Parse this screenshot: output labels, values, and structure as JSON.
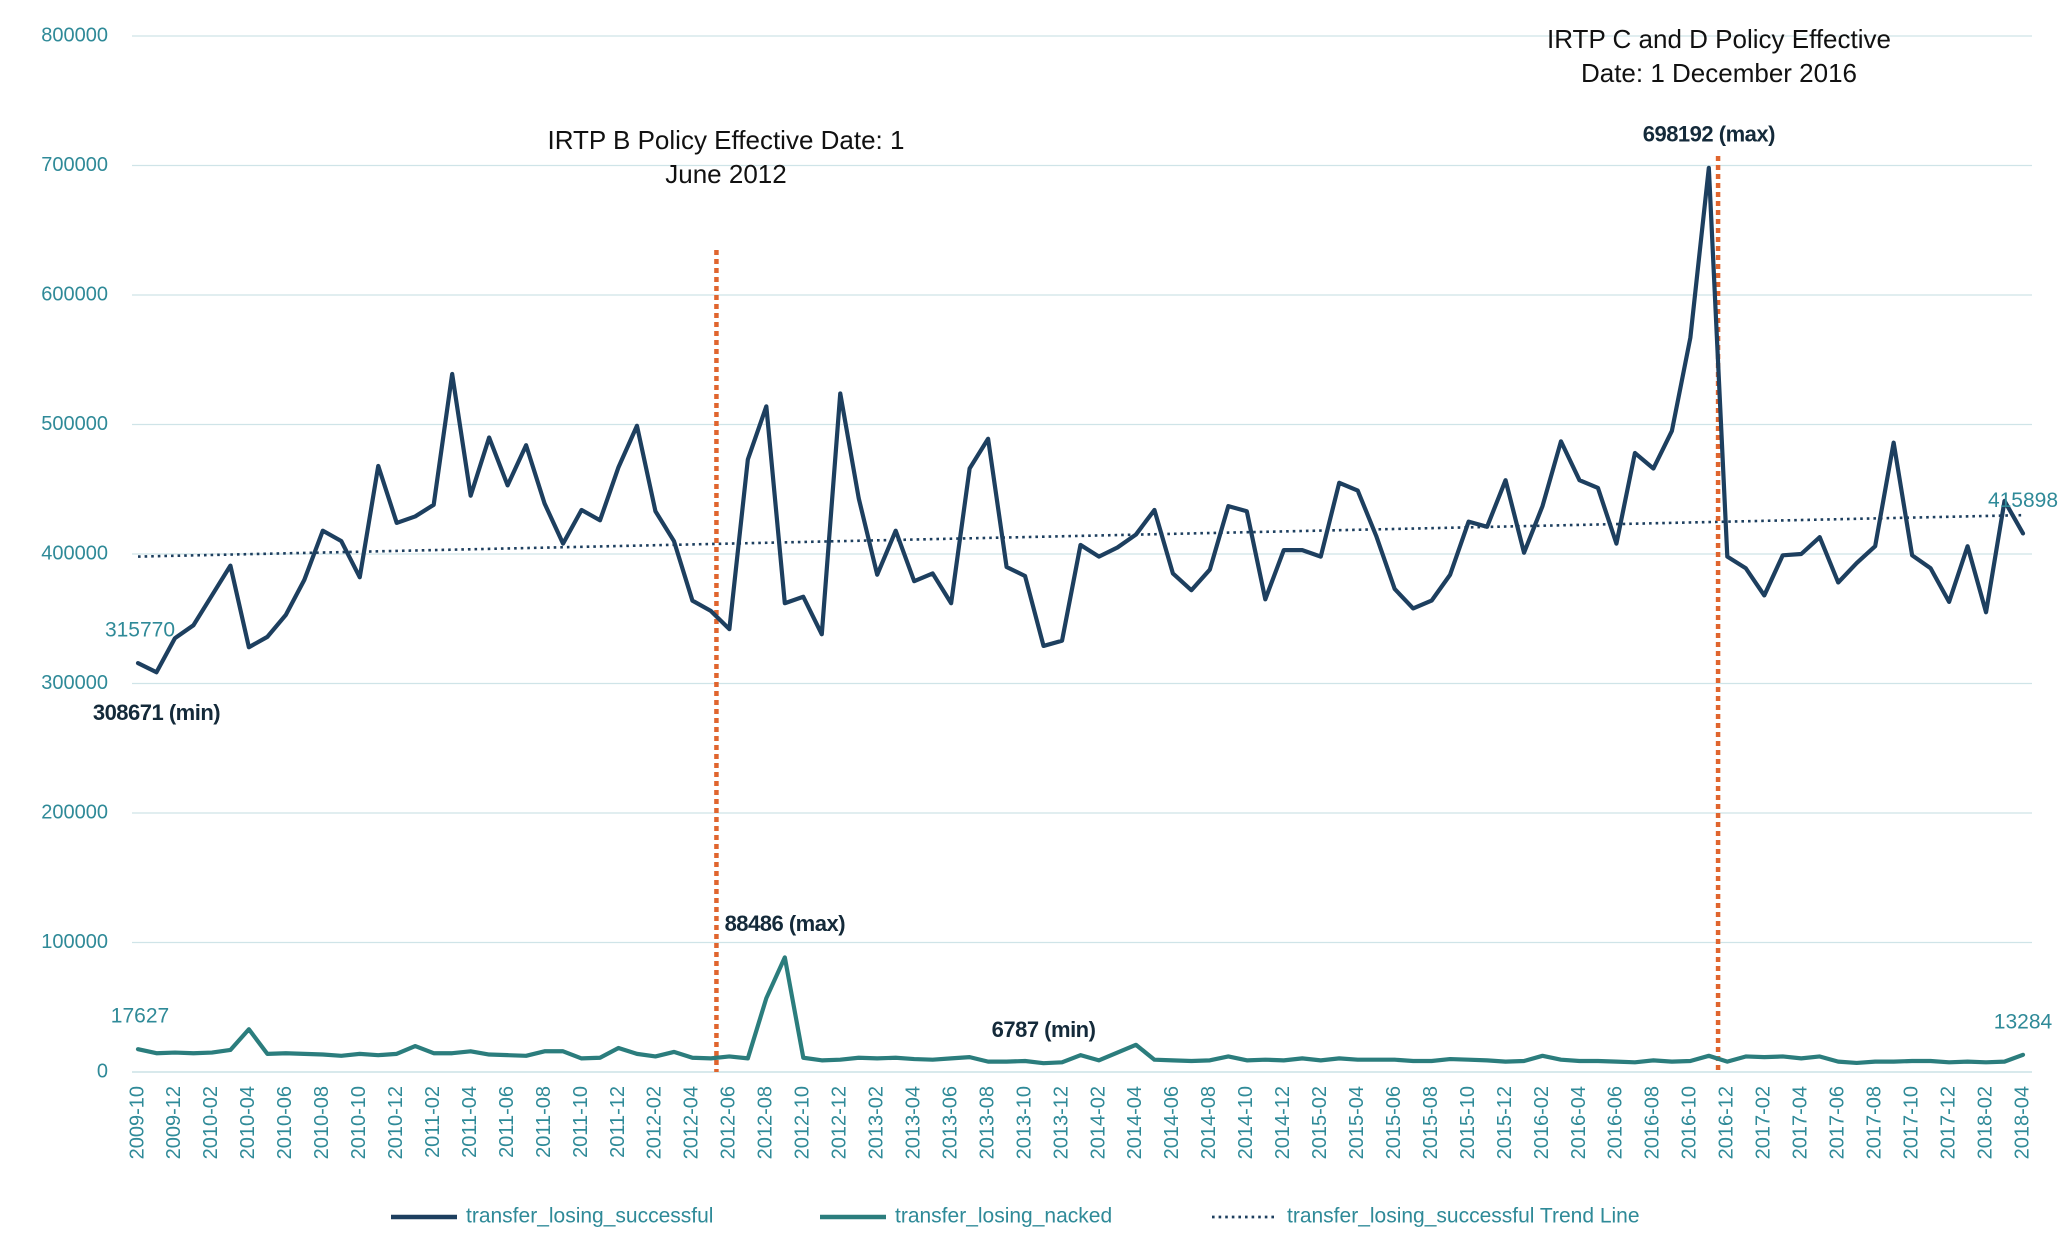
{
  "chart_data": {
    "type": "line",
    "categories": [
      "2009-10",
      null,
      "2009-12",
      null,
      "2010-02",
      null,
      "2010-04",
      null,
      "2010-06",
      null,
      "2010-08",
      null,
      "2010-10",
      null,
      "2010-12",
      null,
      "2011-02",
      null,
      "2011-04",
      null,
      "2011-06",
      null,
      "2011-08",
      null,
      "2011-10",
      null,
      "2011-12",
      null,
      "2012-02",
      null,
      "2012-04",
      null,
      "2012-06",
      null,
      "2012-08",
      null,
      "2012-10",
      null,
      "2012-12",
      null,
      "2013-02",
      null,
      "2013-04",
      null,
      "2013-06",
      null,
      "2013-08",
      null,
      "2013-10",
      null,
      "2013-12",
      null,
      "2014-02",
      null,
      "2014-04",
      null,
      "2014-06",
      null,
      "2014-08",
      null,
      "2014-10",
      null,
      "2014-12",
      null,
      "2015-02",
      null,
      "2015-04",
      null,
      "2015-06",
      null,
      "2015-08",
      null,
      "2015-10",
      null,
      "2015-12",
      null,
      "2016-02",
      null,
      "2016-04",
      null,
      "2016-06",
      null,
      "2016-08",
      null,
      "2016-10",
      null,
      "2016-12",
      null,
      "2017-02",
      null,
      "2017-04",
      null,
      "2017-06",
      null,
      "2017-08",
      null,
      "2017-10",
      null,
      "2017-12",
      null,
      "2018-02",
      null,
      "2018-04"
    ],
    "series": [
      {
        "name": "transfer_losing_successful",
        "color": "#1d3f5f",
        "values": [
          315770,
          308671,
          335000,
          345000,
          368000,
          391000,
          328000,
          336000,
          353000,
          380000,
          418000,
          410000,
          382000,
          468000,
          424000,
          429000,
          438000,
          539000,
          445000,
          490000,
          453000,
          484000,
          439000,
          408000,
          434000,
          426000,
          467000,
          499000,
          433000,
          410000,
          364000,
          356000,
          342000,
          473000,
          514000,
          362000,
          367000,
          338000,
          524000,
          443000,
          384000,
          418000,
          379000,
          385000,
          362000,
          466000,
          489000,
          390000,
          383000,
          329000,
          333000,
          407000,
          398000,
          405000,
          415000,
          434000,
          385000,
          372000,
          388000,
          437000,
          433000,
          365000,
          403000,
          403000,
          398000,
          455000,
          449000,
          414000,
          373000,
          358000,
          364000,
          384000,
          425000,
          421000,
          457000,
          401000,
          437000,
          487000,
          457000,
          451000,
          408000,
          478000,
          466000,
          495000,
          567000,
          698192,
          398000,
          389000,
          368000,
          399000,
          400000,
          413000,
          378000,
          393000,
          406000,
          486000,
          399000,
          389000,
          363000,
          406000,
          355000,
          441000,
          415898
        ],
        "value_labels": [
          "315770",
          "308671 (min)",
          null,
          null,
          null,
          null,
          null,
          null,
          null,
          null,
          null,
          null,
          null,
          null,
          null,
          null,
          null,
          null,
          null,
          null,
          null,
          null,
          null,
          null,
          null,
          null,
          null,
          null,
          null,
          null,
          null,
          null,
          null,
          null,
          null,
          null,
          null,
          null,
          null,
          null,
          null,
          null,
          null,
          null,
          null,
          null,
          null,
          null,
          null,
          null,
          null,
          null,
          null,
          null,
          null,
          null,
          null,
          null,
          null,
          null,
          null,
          null,
          null,
          null,
          null,
          null,
          null,
          null,
          null,
          null,
          null,
          null,
          null,
          null,
          null,
          null,
          null,
          null,
          null,
          null,
          null,
          null,
          null,
          null,
          null,
          "698192 (max)",
          null,
          null,
          null,
          null,
          null,
          null,
          null,
          null,
          null,
          null,
          null,
          null,
          null,
          null,
          null,
          null,
          "415898"
        ]
      },
      {
        "name": "transfer_losing_nacked",
        "color": "#2b7d7d",
        "values": [
          17627,
          14500,
          15000,
          14500,
          15000,
          17000,
          33000,
          14000,
          14500,
          14000,
          13500,
          12500,
          14000,
          13000,
          14000,
          20000,
          14500,
          14500,
          16000,
          13500,
          13000,
          12500,
          16000,
          16000,
          10500,
          11000,
          18500,
          14000,
          12000,
          15500,
          11000,
          10500,
          12000,
          10500,
          57000,
          88486,
          11000,
          9000,
          9500,
          11000,
          10500,
          11000,
          10000,
          9500,
          10500,
          11500,
          8000,
          8000,
          8500,
          6787,
          7500,
          13000,
          9000,
          15000,
          21000,
          9500,
          9000,
          8500,
          9000,
          12000,
          9000,
          9500,
          9000,
          10500,
          9000,
          10500,
          9500,
          9500,
          9500,
          8500,
          8500,
          10000,
          9500,
          9000,
          8000,
          8500,
          12500,
          9500,
          8500,
          8500,
          8000,
          7500,
          9000,
          8000,
          8500,
          12500,
          8000,
          12000,
          11500,
          12000,
          10500,
          12000,
          8000,
          7000,
          8000,
          8000,
          8500,
          8500,
          7500,
          8000,
          7500,
          8000,
          13284
        ],
        "value_labels": [
          "17627",
          null,
          null,
          null,
          null,
          null,
          null,
          null,
          null,
          null,
          null,
          null,
          null,
          null,
          null,
          null,
          null,
          null,
          null,
          null,
          null,
          null,
          null,
          null,
          null,
          null,
          null,
          null,
          null,
          null,
          null,
          null,
          null,
          null,
          null,
          "88486 (max)",
          null,
          null,
          null,
          null,
          null,
          null,
          null,
          null,
          null,
          null,
          null,
          null,
          null,
          "6787 (min)",
          null,
          null,
          null,
          null,
          null,
          null,
          null,
          null,
          null,
          null,
          null,
          null,
          null,
          null,
          null,
          null,
          null,
          null,
          null,
          null,
          null,
          null,
          null,
          null,
          null,
          null,
          null,
          null,
          null,
          null,
          null,
          null,
          null,
          null,
          null,
          null,
          null,
          null,
          null,
          null,
          null,
          null,
          null,
          null,
          null,
          null,
          null,
          null,
          null,
          null,
          null,
          null,
          "13284"
        ]
      }
    ],
    "trend_line": {
      "name": "transfer_losing_successful Trend Line",
      "color": "#1d3f5f",
      "start": 398000,
      "end": 430000
    },
    "annotations": [
      {
        "lines": [
          "IRTP B Policy Effective Date: 1",
          "June 2012"
        ],
        "color": "#e0652e"
      },
      {
        "lines": [
          "IRTP C and D Policy Effective",
          "Date: 1 December 2016"
        ],
        "color": "#e0652e"
      }
    ],
    "ylim": [
      0,
      800000
    ],
    "yticks": [
      0,
      100000,
      200000,
      300000,
      400000,
      500000,
      600000,
      700000,
      800000
    ],
    "grid": true,
    "legend": "bottom"
  }
}
